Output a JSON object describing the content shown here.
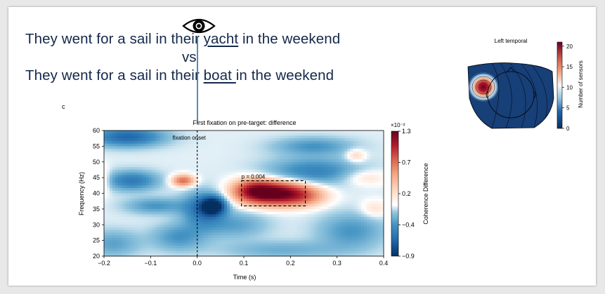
{
  "slide": {
    "sentence1": {
      "before": "They went for a sail in their ",
      "target": "yacht",
      "after": " in the weekend"
    },
    "vs": "vs",
    "sentence2": {
      "before": "They went for a sail in their ",
      "target": "boat ",
      "after": "in the weekend"
    },
    "panel_letter": "c"
  },
  "colors": {
    "sentence_text": "#14284b",
    "eye_line": "#2e6f9e",
    "red": "#b2182b",
    "blue": "#2166ac"
  },
  "chart_data": [
    {
      "type": "heatmap",
      "title": "First fixation on pre-target: difference",
      "xlabel": "Time (s)",
      "ylabel": "Frequency (Hz)",
      "xlim": [
        -0.2,
        0.4
      ],
      "ylim": [
        20,
        60
      ],
      "xticks": [
        "−0.2",
        "−0.1",
        "0.0",
        "0.1",
        "0.2",
        "0.3",
        "0.4"
      ],
      "yticks": [
        "20",
        "25",
        "30",
        "35",
        "40",
        "45",
        "50",
        "55",
        "60"
      ],
      "onset_line": {
        "x": 0.0,
        "label": "fixation onset"
      },
      "cluster_box": {
        "x": [
          0.095,
          0.232
        ],
        "y": [
          36,
          44
        ],
        "label": "p = 0.004"
      },
      "colorbar": {
        "label": "Coherence Difference",
        "exponent": "×10⁻²",
        "range": [
          -0.9,
          1.3
        ],
        "ticks": [
          "1.3",
          "0.7",
          "0.2",
          "−0.4",
          "−0.9"
        ]
      },
      "blobs": [
        {
          "x": 0.17,
          "y": 40,
          "sx": 0.048,
          "sy": 2.6,
          "v": 1.3
        },
        {
          "x": 0.12,
          "y": 41,
          "sx": 0.03,
          "sy": 2.5,
          "v": 0.7
        },
        {
          "x": 0.23,
          "y": 39,
          "sx": 0.035,
          "sy": 2.2,
          "v": 0.35
        },
        {
          "x": -0.03,
          "y": 44,
          "sx": 0.017,
          "sy": 1.3,
          "v": 0.7
        },
        {
          "x": 0.36,
          "y": 45,
          "sx": 0.035,
          "sy": 1.8,
          "v": 0.2
        },
        {
          "x": 0.34,
          "y": 52,
          "sx": 0.015,
          "sy": 1.5,
          "v": 0.25
        },
        {
          "x": 0.38,
          "y": 35,
          "sx": 0.02,
          "sy": 2,
          "v": 0.18
        },
        {
          "x": -0.2,
          "y": 44,
          "sx": 0.01,
          "sy": 3,
          "v": 0.2
        },
        {
          "x": 0.035,
          "y": 36,
          "sx": 0.018,
          "sy": 2,
          "v": -0.9
        },
        {
          "x": 0.01,
          "y": 35,
          "sx": 0.03,
          "sy": 4,
          "v": -0.45
        },
        {
          "x": -0.15,
          "y": 58,
          "sx": 0.055,
          "sy": 2.2,
          "v": -0.55
        },
        {
          "x": -0.14,
          "y": 44,
          "sx": 0.04,
          "sy": 2.2,
          "v": -0.45
        },
        {
          "x": -0.09,
          "y": 36,
          "sx": 0.045,
          "sy": 1.8,
          "v": -0.3
        },
        {
          "x": -0.04,
          "y": 26,
          "sx": 0.04,
          "sy": 3,
          "v": -0.3
        },
        {
          "x": 0.08,
          "y": 30,
          "sx": 0.05,
          "sy": 3,
          "v": -0.25
        },
        {
          "x": 0.25,
          "y": 47,
          "sx": 0.07,
          "sy": 3,
          "v": -0.4
        },
        {
          "x": 0.25,
          "y": 55,
          "sx": 0.06,
          "sy": 2,
          "v": -0.3
        },
        {
          "x": 0.33,
          "y": 28,
          "sx": 0.05,
          "sy": 4,
          "v": -0.3
        },
        {
          "x": 0.18,
          "y": 22,
          "sx": 0.09,
          "sy": 2,
          "v": -0.2
        },
        {
          "x": -0.18,
          "y": 24,
          "sx": 0.04,
          "sy": 3,
          "v": -0.25
        }
      ]
    },
    {
      "type": "heatmap",
      "title": "Left temporal",
      "colorbar": {
        "label": "Number of sensors",
        "range": [
          0,
          21
        ],
        "ticks": [
          "20",
          "15",
          "10",
          "5",
          "0"
        ]
      },
      "peak_value": 21
    }
  ]
}
